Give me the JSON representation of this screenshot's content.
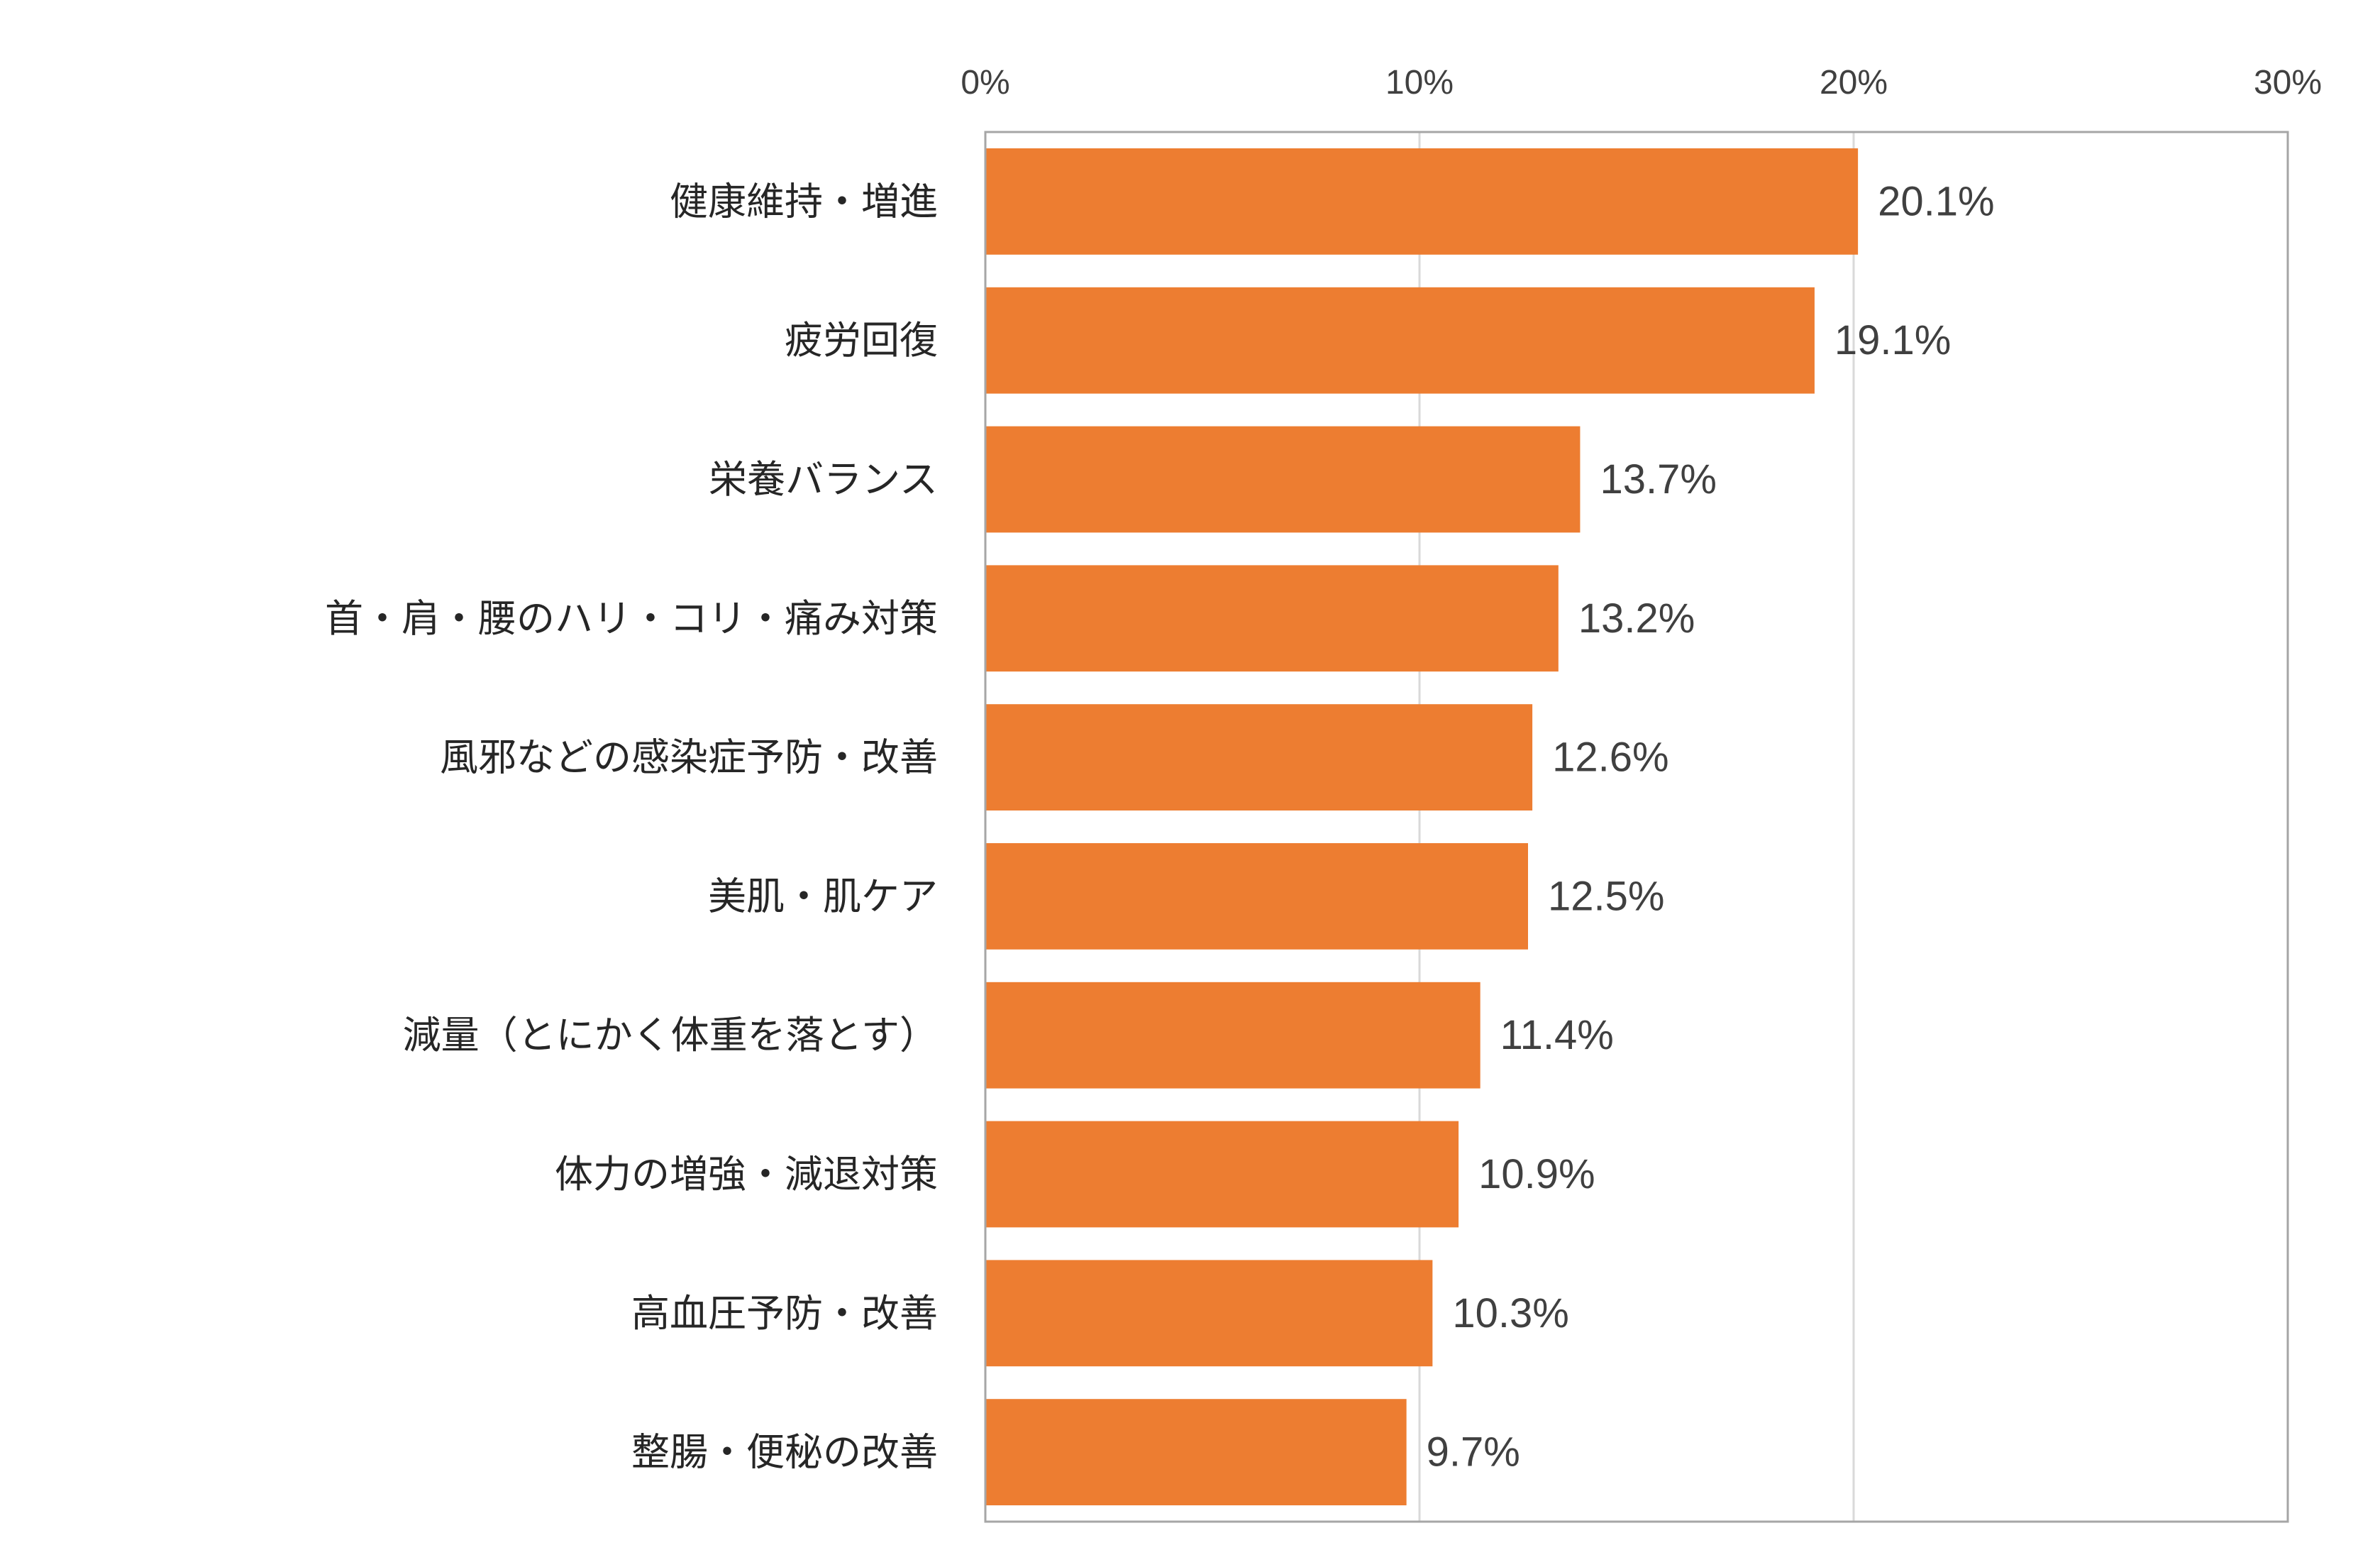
{
  "chart_data": {
    "type": "bar",
    "orientation": "horizontal",
    "categories": [
      "健康維持・増進",
      "疲労回復",
      "栄養バランス",
      "首・肩・腰のハリ・コリ・痛み対策",
      "風邪などの感染症予防・改善",
      "美肌・肌ケア",
      "減量（とにかく体重を落とす）",
      "体力の増強・減退対策",
      "高血圧予防・改善",
      "整腸・便秘の改善"
    ],
    "values": [
      20.1,
      19.1,
      13.7,
      13.2,
      12.6,
      12.5,
      11.4,
      10.9,
      10.3,
      9.7
    ],
    "value_labels": [
      "20.1%",
      "19.1%",
      "13.7%",
      "13.2%",
      "12.6%",
      "12.5%",
      "11.4%",
      "10.9%",
      "10.3%",
      "9.7%"
    ],
    "xlim": [
      0,
      30
    ],
    "x_ticks": [
      0,
      10,
      20,
      30
    ],
    "x_tick_labels": [
      "0%",
      "10%",
      "20%",
      "30%"
    ],
    "x_axis_position": "top",
    "title": "",
    "xlabel": "",
    "ylabel": "",
    "grid": "vertical",
    "legend": "none",
    "bar_color": "#ED7D31",
    "grid_color": "#D9D9D9",
    "frame_color": "#A6A6A6"
  }
}
